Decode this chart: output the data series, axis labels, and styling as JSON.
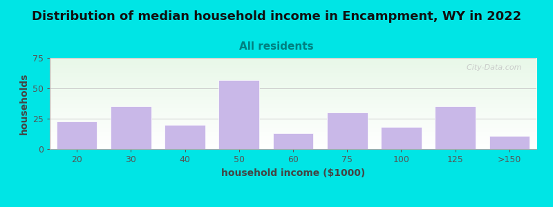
{
  "title": "Distribution of median household income in Encampment, WY in 2022",
  "subtitle": "All residents",
  "xlabel": "household income ($1000)",
  "ylabel": "households",
  "categories": [
    "20",
    "30",
    "40",
    "50",
    "60",
    "75",
    "100",
    "125",
    ">150"
  ],
  "values": [
    23,
    35,
    20,
    57,
    13,
    30,
    18,
    35,
    11
  ],
  "bar_color": "#c9b8e8",
  "bar_edgecolor": "#ffffff",
  "background_color": "#00e5e5",
  "ylim": [
    0,
    75
  ],
  "yticks": [
    0,
    25,
    50,
    75
  ],
  "title_fontsize": 13,
  "subtitle_fontsize": 11,
  "subtitle_color": "#008080",
  "axis_label_fontsize": 10,
  "tick_fontsize": 9,
  "watermark_text": "  City-Data.com",
  "grid_color": "#cccccc",
  "bar_width": 0.75,
  "title_color": "#111111",
  "tick_color": "#555555",
  "label_color": "#444444"
}
